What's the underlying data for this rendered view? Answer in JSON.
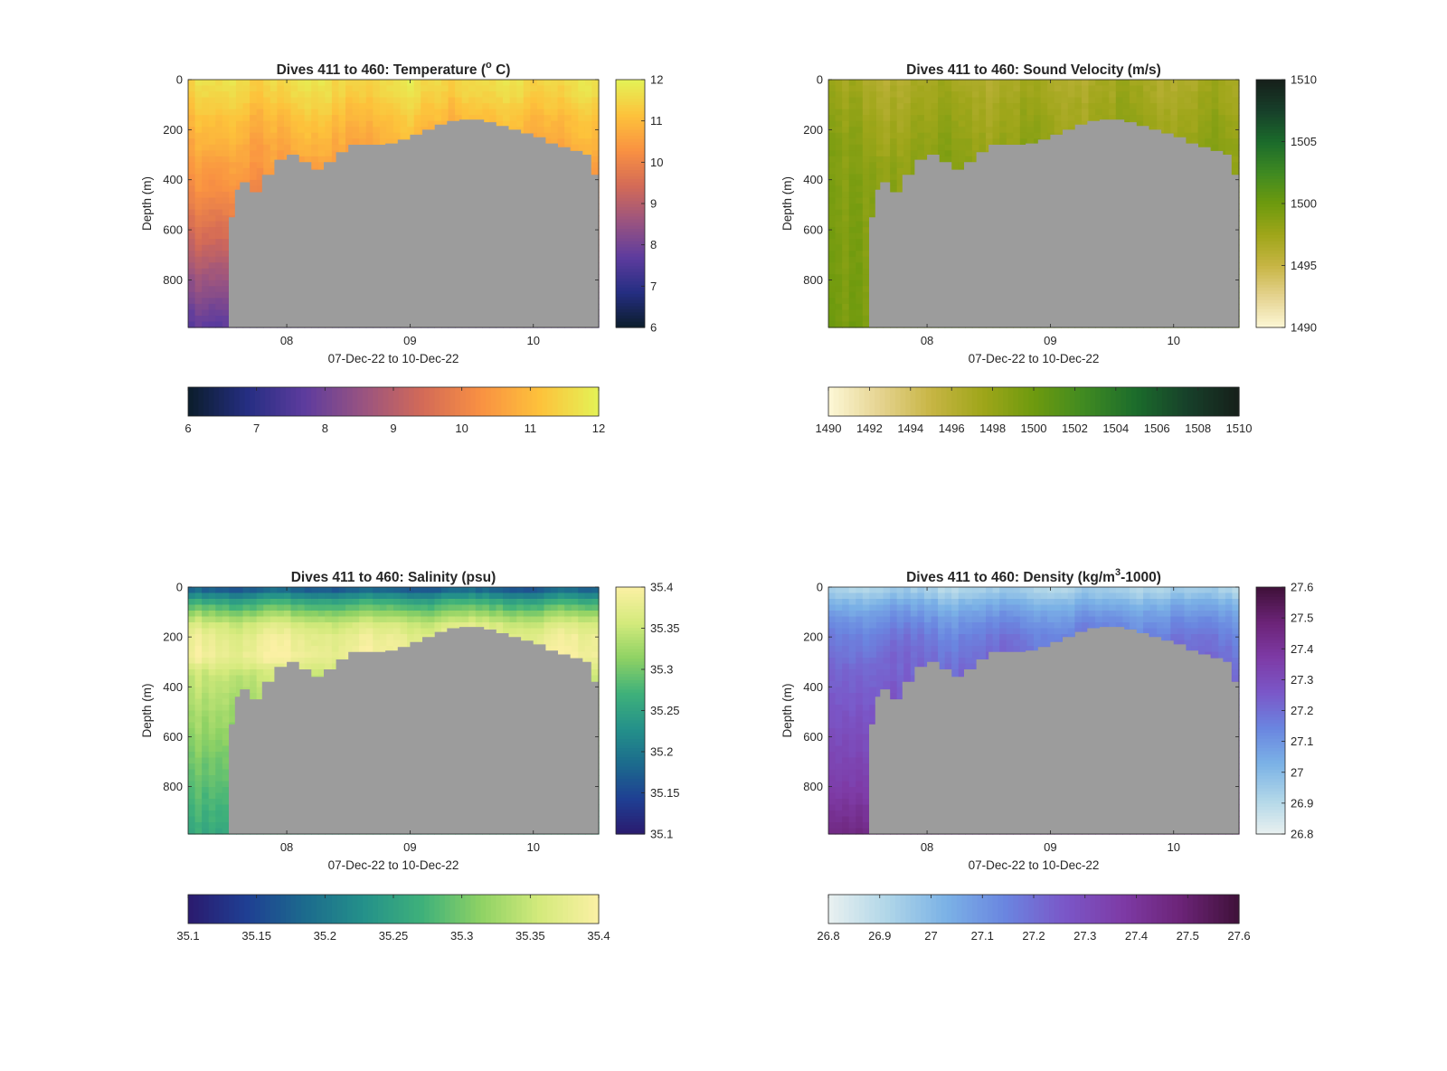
{
  "figure": {
    "background": "#ffffff",
    "bathymetry_color": "#9c9c9c",
    "missing_color": "#c8c8c8"
  },
  "chart_data": [
    {
      "type": "heatmap",
      "id": "temperature",
      "title_pre": "Dives 411 to 460: Temperature (",
      "title_sup": "o",
      "title_post": " C)",
      "ylabel": "Depth (m)",
      "xlabel": "07-Dec-22 to 10-Dec-22",
      "xticks": [
        "08",
        "09",
        "10"
      ],
      "xtick_values": [
        8,
        9,
        10
      ],
      "xlim": [
        7.2,
        10.53
      ],
      "yticks": [
        "0",
        "200",
        "400",
        "600",
        "800"
      ],
      "ytick_values": [
        0,
        200,
        400,
        600,
        800
      ],
      "ylim": [
        0,
        990
      ],
      "ydir": "reverse",
      "clim": [
        6,
        12
      ],
      "vcolorbar_ticks": [
        "6",
        "7",
        "8",
        "9",
        "10",
        "11",
        "12"
      ],
      "hcolorbar_ticks": [
        "6",
        "7",
        "8",
        "9",
        "10",
        "11",
        "12"
      ],
      "colormap": [
        "#0b1d2b",
        "#252e82",
        "#5e3c9e",
        "#9a5480",
        "#d36a57",
        "#f99142",
        "#fdc23b",
        "#e4f256"
      ],
      "profile": {
        "depths": [
          0,
          50,
          100,
          150,
          250,
          350,
          450,
          600,
          800,
          990
        ],
        "values": [
          11.6,
          11.5,
          11.3,
          11.1,
          10.8,
          10.5,
          10.2,
          9.6,
          8.6,
          7.7
        ]
      }
    },
    {
      "type": "heatmap",
      "id": "sound_velocity",
      "title_pre": "Dives 411 to 460: Sound Velocity (m/s)",
      "title_sup": "",
      "title_post": "",
      "ylabel": "Depth (m)",
      "xlabel": "07-Dec-22 to 10-Dec-22",
      "xticks": [
        "08",
        "09",
        "10"
      ],
      "xtick_values": [
        8,
        9,
        10
      ],
      "xlim": [
        7.2,
        10.53
      ],
      "yticks": [
        "0",
        "200",
        "400",
        "600",
        "800"
      ],
      "ytick_values": [
        0,
        200,
        400,
        600,
        800
      ],
      "ylim": [
        0,
        990
      ],
      "ydir": "reverse",
      "clim": [
        1490,
        1510
      ],
      "vcolorbar_ticks": [
        "1490",
        "1495",
        "1500",
        "1505",
        "1510"
      ],
      "hcolorbar_ticks": [
        "1490",
        "1492",
        "1494",
        "1496",
        "1498",
        "1500",
        "1502",
        "1504",
        "1506",
        "1508",
        "1510"
      ],
      "colormap": [
        "#fdf8d6",
        "#e5d391",
        "#c7b544",
        "#9fa61a",
        "#6e9a0e",
        "#3f8a22",
        "#1b6b2b",
        "#17402a",
        "#161f1a"
      ],
      "profile": {
        "depths": [
          0,
          50,
          100,
          200,
          300,
          400,
          500,
          700,
          990
        ],
        "values": [
          1496.8,
          1497.0,
          1497.3,
          1497.8,
          1498.3,
          1498.6,
          1498.8,
          1499.0,
          1499.3
        ]
      }
    },
    {
      "type": "heatmap",
      "id": "salinity",
      "title_pre": "Dives 411 to 460: Salinity (psu)",
      "title_sup": "",
      "title_post": "",
      "ylabel": "Depth (m)",
      "xlabel": "07-Dec-22 to 10-Dec-22",
      "xticks": [
        "08",
        "09",
        "10"
      ],
      "xtick_values": [
        8,
        9,
        10
      ],
      "xlim": [
        7.2,
        10.53
      ],
      "yticks": [
        "0",
        "200",
        "400",
        "600",
        "800"
      ],
      "ytick_values": [
        0,
        200,
        400,
        600,
        800
      ],
      "ylim": [
        0,
        990
      ],
      "ydir": "reverse",
      "clim": [
        35.1,
        35.4
      ],
      "vcolorbar_ticks": [
        "35.1",
        "35.15",
        "35.2",
        "35.25",
        "35.3",
        "35.35",
        "35.4"
      ],
      "hcolorbar_ticks": [
        "35.1",
        "35.15",
        "35.2",
        "35.25",
        "35.3",
        "35.35",
        "35.4"
      ],
      "colormap": [
        "#2a1a6e",
        "#1f3f93",
        "#1c6b8d",
        "#24918a",
        "#3fb17a",
        "#8fd264",
        "#d4ea7c",
        "#fbf0a4"
      ],
      "profile": {
        "depths": [
          0,
          20,
          50,
          100,
          150,
          200,
          280,
          350,
          500,
          700,
          990
        ],
        "values": [
          35.16,
          35.19,
          35.25,
          35.31,
          35.36,
          35.38,
          35.39,
          35.35,
          35.33,
          35.3,
          35.26
        ]
      }
    },
    {
      "type": "heatmap",
      "id": "density",
      "title_pre": "Dives 411 to 460: Density (kg/m",
      "title_sup": "3",
      "title_post": "-1000)",
      "ylabel": "Depth (m)",
      "xlabel": "07-Dec-22 to 10-Dec-22",
      "xticks": [
        "08",
        "09",
        "10"
      ],
      "xtick_values": [
        8,
        9,
        10
      ],
      "xlim": [
        7.2,
        10.53
      ],
      "yticks": [
        "0",
        "200",
        "400",
        "600",
        "800"
      ],
      "ytick_values": [
        0,
        200,
        400,
        600,
        800
      ],
      "ylim": [
        0,
        990
      ],
      "ydir": "reverse",
      "clim": [
        26.8,
        27.6
      ],
      "vcolorbar_ticks": [
        "26.8",
        "26.9",
        "27",
        "27.1",
        "27.2",
        "27.3",
        "27.4",
        "27.5",
        "27.6"
      ],
      "hcolorbar_ticks": [
        "26.8",
        "26.9",
        "27",
        "27.1",
        "27.2",
        "27.3",
        "27.4",
        "27.5",
        "27.6"
      ],
      "colormap": [
        "#e9f1f0",
        "#b0d6e8",
        "#7bb2e6",
        "#6a86e0",
        "#7a58c9",
        "#7e3ba6",
        "#6c2478",
        "#3f1139"
      ],
      "profile": {
        "depths": [
          0,
          30,
          60,
          120,
          200,
          300,
          400,
          600,
          800,
          990
        ],
        "values": [
          26.92,
          26.96,
          27.02,
          27.1,
          27.17,
          27.21,
          27.24,
          27.3,
          27.36,
          27.46
        ]
      }
    }
  ],
  "bathymetry": {
    "dates": [
      7.2,
      7.5,
      7.53,
      7.58,
      7.62,
      7.7,
      7.8,
      7.9,
      8.0,
      8.1,
      8.2,
      8.3,
      8.4,
      8.5,
      8.6,
      8.7,
      8.8,
      8.9,
      9.0,
      9.1,
      9.2,
      9.3,
      9.4,
      9.5,
      9.6,
      9.7,
      9.8,
      9.9,
      10.0,
      10.1,
      10.2,
      10.3,
      10.4,
      10.47,
      10.53
    ],
    "depths": [
      990,
      990,
      550,
      440,
      410,
      450,
      380,
      320,
      300,
      330,
      360,
      330,
      290,
      260,
      260,
      260,
      255,
      240,
      220,
      200,
      180,
      165,
      160,
      160,
      170,
      185,
      200,
      215,
      230,
      255,
      270,
      285,
      300,
      380,
      380
    ]
  }
}
